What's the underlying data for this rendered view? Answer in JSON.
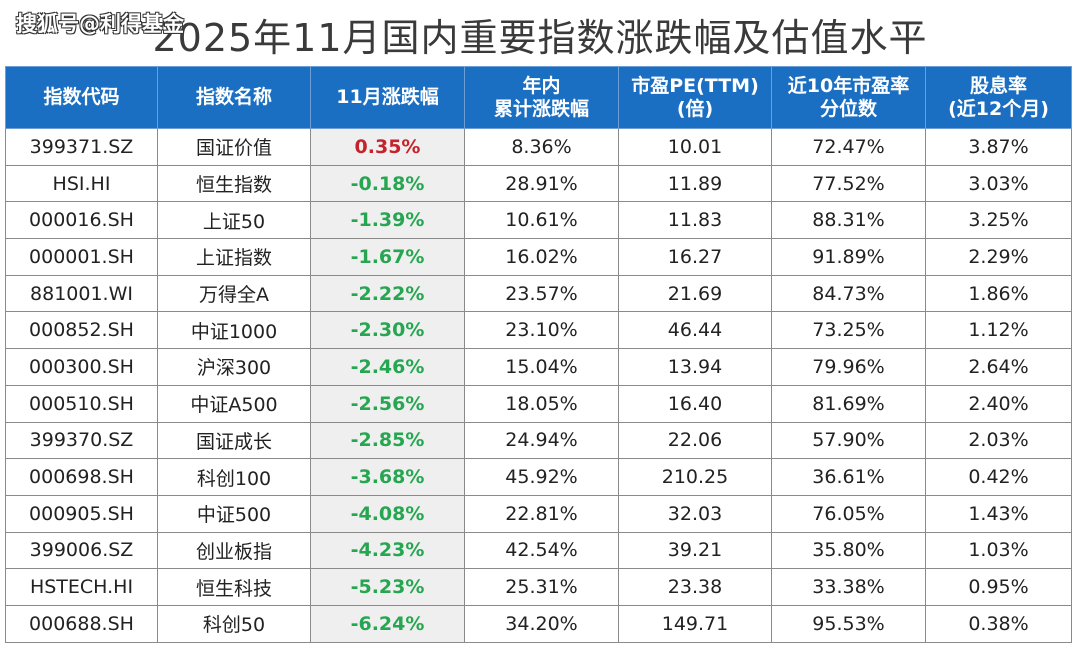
{
  "watermark": "搜狐号@利得基金",
  "title": "2025年11月国内重要指数涨跌幅及估值水平",
  "colors": {
    "header_bg": "#1b6fc2",
    "positive": "#c4232b",
    "negative": "#26a650"
  },
  "table": {
    "headers": [
      [
        "指数代码"
      ],
      [
        "指数名称"
      ],
      [
        "11月涨跌幅"
      ],
      [
        "年内",
        "累计涨跌幅"
      ],
      [
        "市盈PE(TTM)",
        "(倍)"
      ],
      [
        "近10年市盈率",
        "分位数"
      ],
      [
        "股息率",
        "(近12个月)"
      ]
    ],
    "rows": [
      [
        "399371.SZ",
        "国证价值",
        "0.35%",
        "8.36%",
        "10.01",
        "72.47%",
        "3.87%"
      ],
      [
        "HSI.HI",
        "恒生指数",
        "-0.18%",
        "28.91%",
        "11.89",
        "77.52%",
        "3.03%"
      ],
      [
        "000016.SH",
        "上证50",
        "-1.39%",
        "10.61%",
        "11.83",
        "88.31%",
        "3.25%"
      ],
      [
        "000001.SH",
        "上证指数",
        "-1.67%",
        "16.02%",
        "16.27",
        "91.89%",
        "2.29%"
      ],
      [
        "881001.WI",
        "万得全A",
        "-2.22%",
        "23.57%",
        "21.69",
        "84.73%",
        "1.86%"
      ],
      [
        "000852.SH",
        "中证1000",
        "-2.30%",
        "23.10%",
        "46.44",
        "73.25%",
        "1.12%"
      ],
      [
        "000300.SH",
        "沪深300",
        "-2.46%",
        "15.04%",
        "13.94",
        "79.96%",
        "2.64%"
      ],
      [
        "000510.SH",
        "中证A500",
        "-2.56%",
        "18.05%",
        "16.40",
        "81.69%",
        "2.40%"
      ],
      [
        "399370.SZ",
        "国证成长",
        "-2.85%",
        "24.94%",
        "22.06",
        "57.90%",
        "2.03%"
      ],
      [
        "000698.SH",
        "科创100",
        "-3.68%",
        "45.92%",
        "210.25",
        "36.61%",
        "0.42%"
      ],
      [
        "000905.SH",
        "中证500",
        "-4.08%",
        "22.81%",
        "32.03",
        "76.05%",
        "1.43%"
      ],
      [
        "399006.SZ",
        "创业板指",
        "-4.23%",
        "42.54%",
        "39.21",
        "35.80%",
        "1.03%"
      ],
      [
        "HSTECH.HI",
        "恒生科技",
        "-5.23%",
        "25.31%",
        "23.38",
        "33.38%",
        "0.95%"
      ],
      [
        "000688.SH",
        "科创50",
        "-6.24%",
        "34.20%",
        "149.71",
        "95.53%",
        "0.38%"
      ]
    ]
  }
}
